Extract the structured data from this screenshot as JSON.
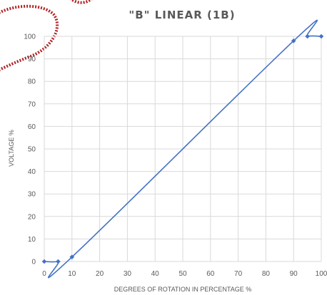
{
  "chart_data": {
    "type": "line",
    "title": "\"B\" LINEAR (1B)",
    "xlabel": "DEGREES OF ROTATION IN PERCENTAGE %",
    "ylabel": "VOLTAGE %",
    "xlim": [
      0,
      100
    ],
    "ylim": [
      0,
      100
    ],
    "x_ticks": [
      "0",
      "10",
      "20",
      "30",
      "40",
      "50",
      "60",
      "70",
      "80",
      "90",
      "100"
    ],
    "y_ticks": [
      "0",
      "10",
      "20",
      "30",
      "40",
      "50",
      "60",
      "70",
      "80",
      "90",
      "100"
    ],
    "grid": true,
    "legend": "none",
    "series": [
      {
        "color": "#4472c4",
        "marker": "diamond",
        "x": [
          0,
          5,
          10,
          90,
          95,
          100
        ],
        "y": [
          0,
          0,
          2,
          98,
          100,
          100
        ]
      }
    ]
  },
  "colors": {
    "line": "#4472c4",
    "grid": "#d9d9d9",
    "text": "#595959",
    "decoration": "#b22222"
  }
}
